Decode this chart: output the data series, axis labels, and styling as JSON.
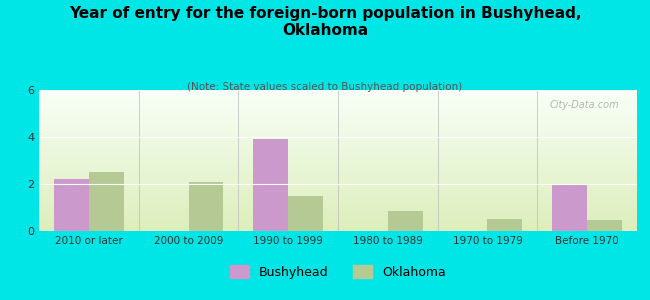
{
  "title": "Year of entry for the foreign-born population in Bushyhead,\nOklahoma",
  "subtitle": "(Note: State values scaled to Bushyhead population)",
  "categories": [
    "2010 or later",
    "2000 to 2009",
    "1990 to 1999",
    "1980 to 1989",
    "1970 to 1979",
    "Before 1970"
  ],
  "bushyhead_values": [
    2.2,
    0,
    3.9,
    0,
    0,
    2.0
  ],
  "oklahoma_values": [
    2.5,
    2.1,
    1.5,
    0.85,
    0.5,
    0.45
  ],
  "bushyhead_color": "#cc99cc",
  "oklahoma_color": "#b5c994",
  "background_color": "#00e5e5",
  "plot_bg_top": "#f8fff8",
  "plot_bg_bottom": "#ddeebb",
  "ylim": [
    0,
    6
  ],
  "yticks": [
    0,
    2,
    4,
    6
  ],
  "bar_width": 0.35,
  "watermark": "City-Data.com",
  "legend_bushyhead": "Bushyhead",
  "legend_oklahoma": "Oklahoma"
}
